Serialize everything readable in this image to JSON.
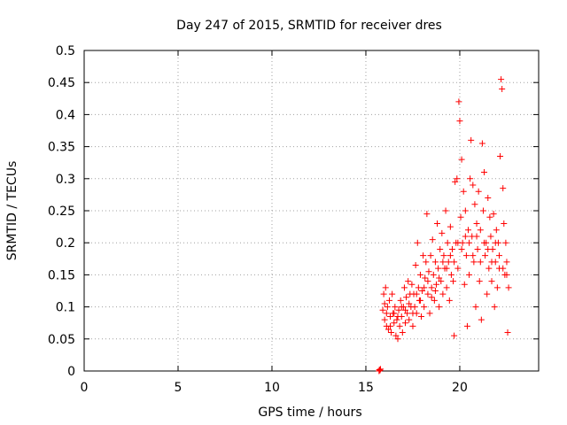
{
  "chart_data": {
    "type": "scatter",
    "title": "Day 247 of 2015, SRMTID for receiver dres",
    "xlabel": "GPS time / hours",
    "ylabel": "SRMTID / TECUs",
    "xlim": [
      0,
      24.2
    ],
    "ylim": [
      0,
      0.5
    ],
    "xticks": [
      0,
      5,
      10,
      15,
      20
    ],
    "yticks": [
      0,
      0.05,
      0.1,
      0.15,
      0.2,
      0.25,
      0.3,
      0.35,
      0.4,
      0.45,
      0.5
    ],
    "ytick_labels": [
      "0",
      "0.05",
      "0.1",
      "0.15",
      "0.2",
      "0.25",
      "0.3",
      "0.35",
      "0.4",
      "0.45",
      "0.5"
    ],
    "grid": true,
    "marker": "+",
    "color": "#ff0000",
    "series": [
      {
        "name": "dres",
        "points": [
          [
            15.7,
            0.0
          ],
          [
            15.72,
            0.002
          ],
          [
            15.75,
            0.001
          ],
          [
            15.78,
            0.003
          ],
          [
            15.9,
            0.095
          ],
          [
            15.95,
            0.12
          ],
          [
            16.0,
            0.08
          ],
          [
            16.05,
            0.13
          ],
          [
            16.1,
            0.07
          ],
          [
            16.15,
            0.1
          ],
          [
            16.2,
            0.065
          ],
          [
            16.25,
            0.11
          ],
          [
            16.3,
            0.085
          ],
          [
            16.35,
            0.06
          ],
          [
            16.4,
            0.12
          ],
          [
            16.45,
            0.09
          ],
          [
            16.5,
            0.075
          ],
          [
            16.55,
            0.1
          ],
          [
            16.6,
            0.055
          ],
          [
            16.65,
            0.08
          ],
          [
            16.7,
            0.05
          ],
          [
            16.75,
            0.095
          ],
          [
            16.8,
            0.07
          ],
          [
            16.85,
            0.11
          ],
          [
            16.9,
            0.085
          ],
          [
            16.95,
            0.06
          ],
          [
            17.0,
            0.1
          ],
          [
            17.05,
            0.13
          ],
          [
            17.1,
            0.075
          ],
          [
            17.15,
            0.115
          ],
          [
            17.2,
            0.09
          ],
          [
            17.25,
            0.14
          ],
          [
            17.3,
            0.08
          ],
          [
            17.35,
            0.12
          ],
          [
            17.4,
            0.1
          ],
          [
            17.45,
            0.135
          ],
          [
            17.5,
            0.07
          ],
          [
            17.55,
            0.12
          ],
          [
            17.6,
            0.1
          ],
          [
            17.65,
            0.165
          ],
          [
            17.7,
            0.09
          ],
          [
            17.75,
            0.2
          ],
          [
            17.8,
            0.13
          ],
          [
            17.85,
            0.11
          ],
          [
            17.9,
            0.15
          ],
          [
            17.95,
            0.085
          ],
          [
            18.0,
            0.125
          ],
          [
            18.05,
            0.18
          ],
          [
            18.1,
            0.1
          ],
          [
            18.15,
            0.145
          ],
          [
            18.2,
            0.17
          ],
          [
            18.25,
            0.245
          ],
          [
            18.3,
            0.12
          ],
          [
            18.35,
            0.155
          ],
          [
            18.4,
            0.09
          ],
          [
            18.45,
            0.18
          ],
          [
            18.5,
            0.13
          ],
          [
            18.55,
            0.205
          ],
          [
            18.6,
            0.15
          ],
          [
            18.65,
            0.11
          ],
          [
            18.7,
            0.17
          ],
          [
            18.75,
            0.135
          ],
          [
            18.8,
            0.23
          ],
          [
            18.85,
            0.16
          ],
          [
            18.9,
            0.1
          ],
          [
            18.95,
            0.19
          ],
          [
            19.0,
            0.14
          ],
          [
            19.05,
            0.215
          ],
          [
            19.1,
            0.12
          ],
          [
            19.15,
            0.18
          ],
          [
            19.2,
            0.16
          ],
          [
            19.25,
            0.25
          ],
          [
            19.3,
            0.13
          ],
          [
            19.35,
            0.2
          ],
          [
            19.4,
            0.17
          ],
          [
            19.45,
            0.11
          ],
          [
            19.5,
            0.225
          ],
          [
            19.55,
            0.15
          ],
          [
            19.6,
            0.19
          ],
          [
            19.65,
            0.14
          ],
          [
            19.7,
            0.055
          ],
          [
            19.75,
            0.295
          ],
          [
            19.8,
            0.2
          ],
          [
            19.85,
            0.3
          ],
          [
            19.9,
            0.16
          ],
          [
            19.95,
            0.42
          ],
          [
            20.0,
            0.39
          ],
          [
            20.05,
            0.24
          ],
          [
            20.1,
            0.33
          ],
          [
            20.15,
            0.2
          ],
          [
            20.2,
            0.28
          ],
          [
            20.25,
            0.135
          ],
          [
            20.3,
            0.25
          ],
          [
            20.35,
            0.18
          ],
          [
            20.4,
            0.07
          ],
          [
            20.45,
            0.22
          ],
          [
            20.5,
            0.15
          ],
          [
            20.55,
            0.3
          ],
          [
            20.6,
            0.36
          ],
          [
            20.65,
            0.21
          ],
          [
            20.7,
            0.29
          ],
          [
            20.75,
            0.17
          ],
          [
            20.8,
            0.26
          ],
          [
            20.85,
            0.1
          ],
          [
            20.9,
            0.23
          ],
          [
            20.95,
            0.19
          ],
          [
            21.0,
            0.28
          ],
          [
            21.05,
            0.14
          ],
          [
            21.1,
            0.22
          ],
          [
            21.15,
            0.08
          ],
          [
            21.2,
            0.355
          ],
          [
            21.25,
            0.25
          ],
          [
            21.3,
            0.31
          ],
          [
            21.35,
            0.18
          ],
          [
            21.4,
            0.2
          ],
          [
            21.45,
            0.12
          ],
          [
            21.5,
            0.27
          ],
          [
            21.55,
            0.16
          ],
          [
            21.6,
            0.24
          ],
          [
            21.65,
            0.21
          ],
          [
            21.7,
            0.14
          ],
          [
            21.75,
            0.19
          ],
          [
            21.8,
            0.245
          ],
          [
            21.85,
            0.1
          ],
          [
            21.9,
            0.17
          ],
          [
            21.95,
            0.22
          ],
          [
            22.0,
            0.13
          ],
          [
            22.05,
            0.2
          ],
          [
            22.1,
            0.16
          ],
          [
            22.15,
            0.335
          ],
          [
            22.2,
            0.455
          ],
          [
            22.25,
            0.44
          ],
          [
            22.3,
            0.285
          ],
          [
            22.35,
            0.23
          ],
          [
            22.4,
            0.15
          ],
          [
            22.45,
            0.2
          ],
          [
            22.5,
            0.17
          ],
          [
            22.55,
            0.06
          ],
          [
            22.6,
            0.13
          ],
          [
            16.0,
            0.105
          ],
          [
            16.1,
            0.09
          ],
          [
            16.3,
            0.07
          ],
          [
            16.5,
            0.09
          ],
          [
            16.7,
            0.085
          ],
          [
            16.9,
            0.1
          ],
          [
            17.1,
            0.095
          ],
          [
            17.3,
            0.105
          ],
          [
            17.5,
            0.09
          ],
          [
            17.7,
            0.12
          ],
          [
            17.9,
            0.11
          ],
          [
            18.1,
            0.13
          ],
          [
            18.3,
            0.14
          ],
          [
            18.5,
            0.115
          ],
          [
            18.7,
            0.125
          ],
          [
            18.9,
            0.145
          ],
          [
            19.1,
            0.17
          ],
          [
            19.3,
            0.16
          ],
          [
            19.5,
            0.18
          ],
          [
            19.7,
            0.17
          ],
          [
            19.9,
            0.2
          ],
          [
            20.1,
            0.19
          ],
          [
            20.3,
            0.21
          ],
          [
            20.5,
            0.2
          ],
          [
            20.7,
            0.18
          ],
          [
            20.9,
            0.21
          ],
          [
            21.1,
            0.17
          ],
          [
            21.3,
            0.2
          ],
          [
            21.5,
            0.19
          ],
          [
            21.7,
            0.17
          ],
          [
            21.9,
            0.2
          ],
          [
            22.1,
            0.18
          ],
          [
            22.3,
            0.16
          ],
          [
            22.5,
            0.15
          ]
        ]
      }
    ]
  }
}
